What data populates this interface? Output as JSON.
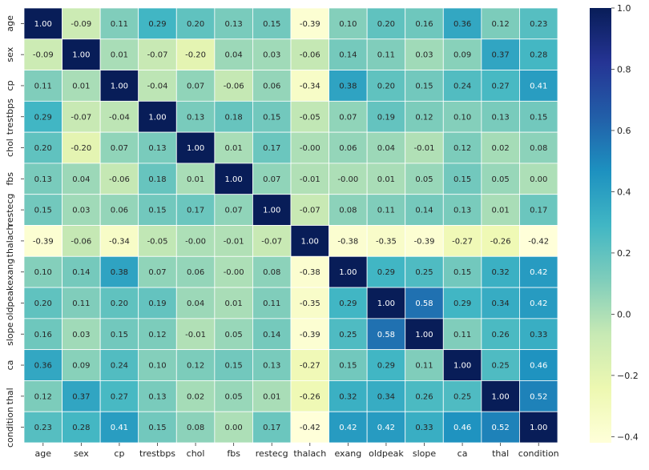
{
  "chart_data": {
    "type": "heatmap",
    "title": "",
    "xlabel": "",
    "ylabel": "",
    "labels": [
      "age",
      "sex",
      "cp",
      "trestbps",
      "chol",
      "fbs",
      "restecg",
      "thalach",
      "exang",
      "oldpeak",
      "slope",
      "ca",
      "thal",
      "condition"
    ],
    "matrix": [
      [
        1.0,
        -0.09,
        0.11,
        0.29,
        0.2,
        0.13,
        0.15,
        -0.39,
        0.1,
        0.2,
        0.16,
        0.36,
        0.12,
        0.23
      ],
      [
        -0.09,
        1.0,
        0.01,
        -0.07,
        -0.2,
        0.04,
        0.03,
        -0.06,
        0.14,
        0.11,
        0.03,
        0.09,
        0.37,
        0.28
      ],
      [
        0.11,
        0.01,
        1.0,
        -0.04,
        0.07,
        -0.06,
        0.06,
        -0.34,
        0.38,
        0.2,
        0.15,
        0.24,
        0.27,
        0.41
      ],
      [
        0.29,
        -0.07,
        -0.04,
        1.0,
        0.13,
        0.18,
        0.15,
        -0.05,
        0.07,
        0.19,
        0.12,
        0.1,
        0.13,
        0.15
      ],
      [
        0.2,
        -0.2,
        0.07,
        0.13,
        1.0,
        0.01,
        0.17,
        -0.0,
        0.06,
        0.04,
        -0.01,
        0.12,
        0.02,
        0.08
      ],
      [
        0.13,
        0.04,
        -0.06,
        0.18,
        0.01,
        1.0,
        0.07,
        -0.01,
        -0.0,
        0.01,
        0.05,
        0.15,
        0.05,
        0.0
      ],
      [
        0.15,
        0.03,
        0.06,
        0.15,
        0.17,
        0.07,
        1.0,
        -0.07,
        0.08,
        0.11,
        0.14,
        0.13,
        0.01,
        0.17
      ],
      [
        -0.39,
        -0.06,
        -0.34,
        -0.05,
        -0.0,
        -0.01,
        -0.07,
        1.0,
        -0.38,
        -0.35,
        -0.39,
        -0.27,
        -0.26,
        -0.42
      ],
      [
        0.1,
        0.14,
        0.38,
        0.07,
        0.06,
        -0.0,
        0.08,
        -0.38,
        1.0,
        0.29,
        0.25,
        0.15,
        0.32,
        0.42
      ],
      [
        0.2,
        0.11,
        0.2,
        0.19,
        0.04,
        0.01,
        0.11,
        -0.35,
        0.29,
        1.0,
        0.58,
        0.29,
        0.34,
        0.42
      ],
      [
        0.16,
        0.03,
        0.15,
        0.12,
        -0.01,
        0.05,
        0.14,
        -0.39,
        0.25,
        0.58,
        1.0,
        0.11,
        0.26,
        0.33
      ],
      [
        0.36,
        0.09,
        0.24,
        0.1,
        0.12,
        0.15,
        0.13,
        -0.27,
        0.15,
        0.29,
        0.11,
        1.0,
        0.25,
        0.46
      ],
      [
        0.12,
        0.37,
        0.27,
        0.13,
        0.02,
        0.05,
        0.01,
        -0.26,
        0.32,
        0.34,
        0.26,
        0.25,
        1.0,
        0.52
      ],
      [
        0.23,
        0.28,
        0.41,
        0.15,
        0.08,
        0.0,
        0.17,
        -0.42,
        0.42,
        0.42,
        0.33,
        0.46,
        0.52,
        1.0
      ]
    ],
    "value_range": [
      -0.42,
      1.0
    ],
    "colorbar_ticks": [
      1.0,
      0.8,
      0.6,
      0.4,
      0.2,
      0.0,
      -0.2,
      -0.4
    ],
    "colorbar_tick_labels": [
      "1.0",
      "0.8",
      "0.6",
      "0.4",
      "0.2",
      "0.0",
      "−0.2",
      "−0.4"
    ],
    "colormap": "YlGnBu",
    "colormap_stops": [
      "#ffffd9",
      "#edf8b1",
      "#c7e9b4",
      "#7fcdbb",
      "#41b6c4",
      "#1d91c0",
      "#225ea8",
      "#253494",
      "#081d58"
    ],
    "cell_border_color": "#ffffff",
    "annotations": true,
    "decimals": 2
  }
}
